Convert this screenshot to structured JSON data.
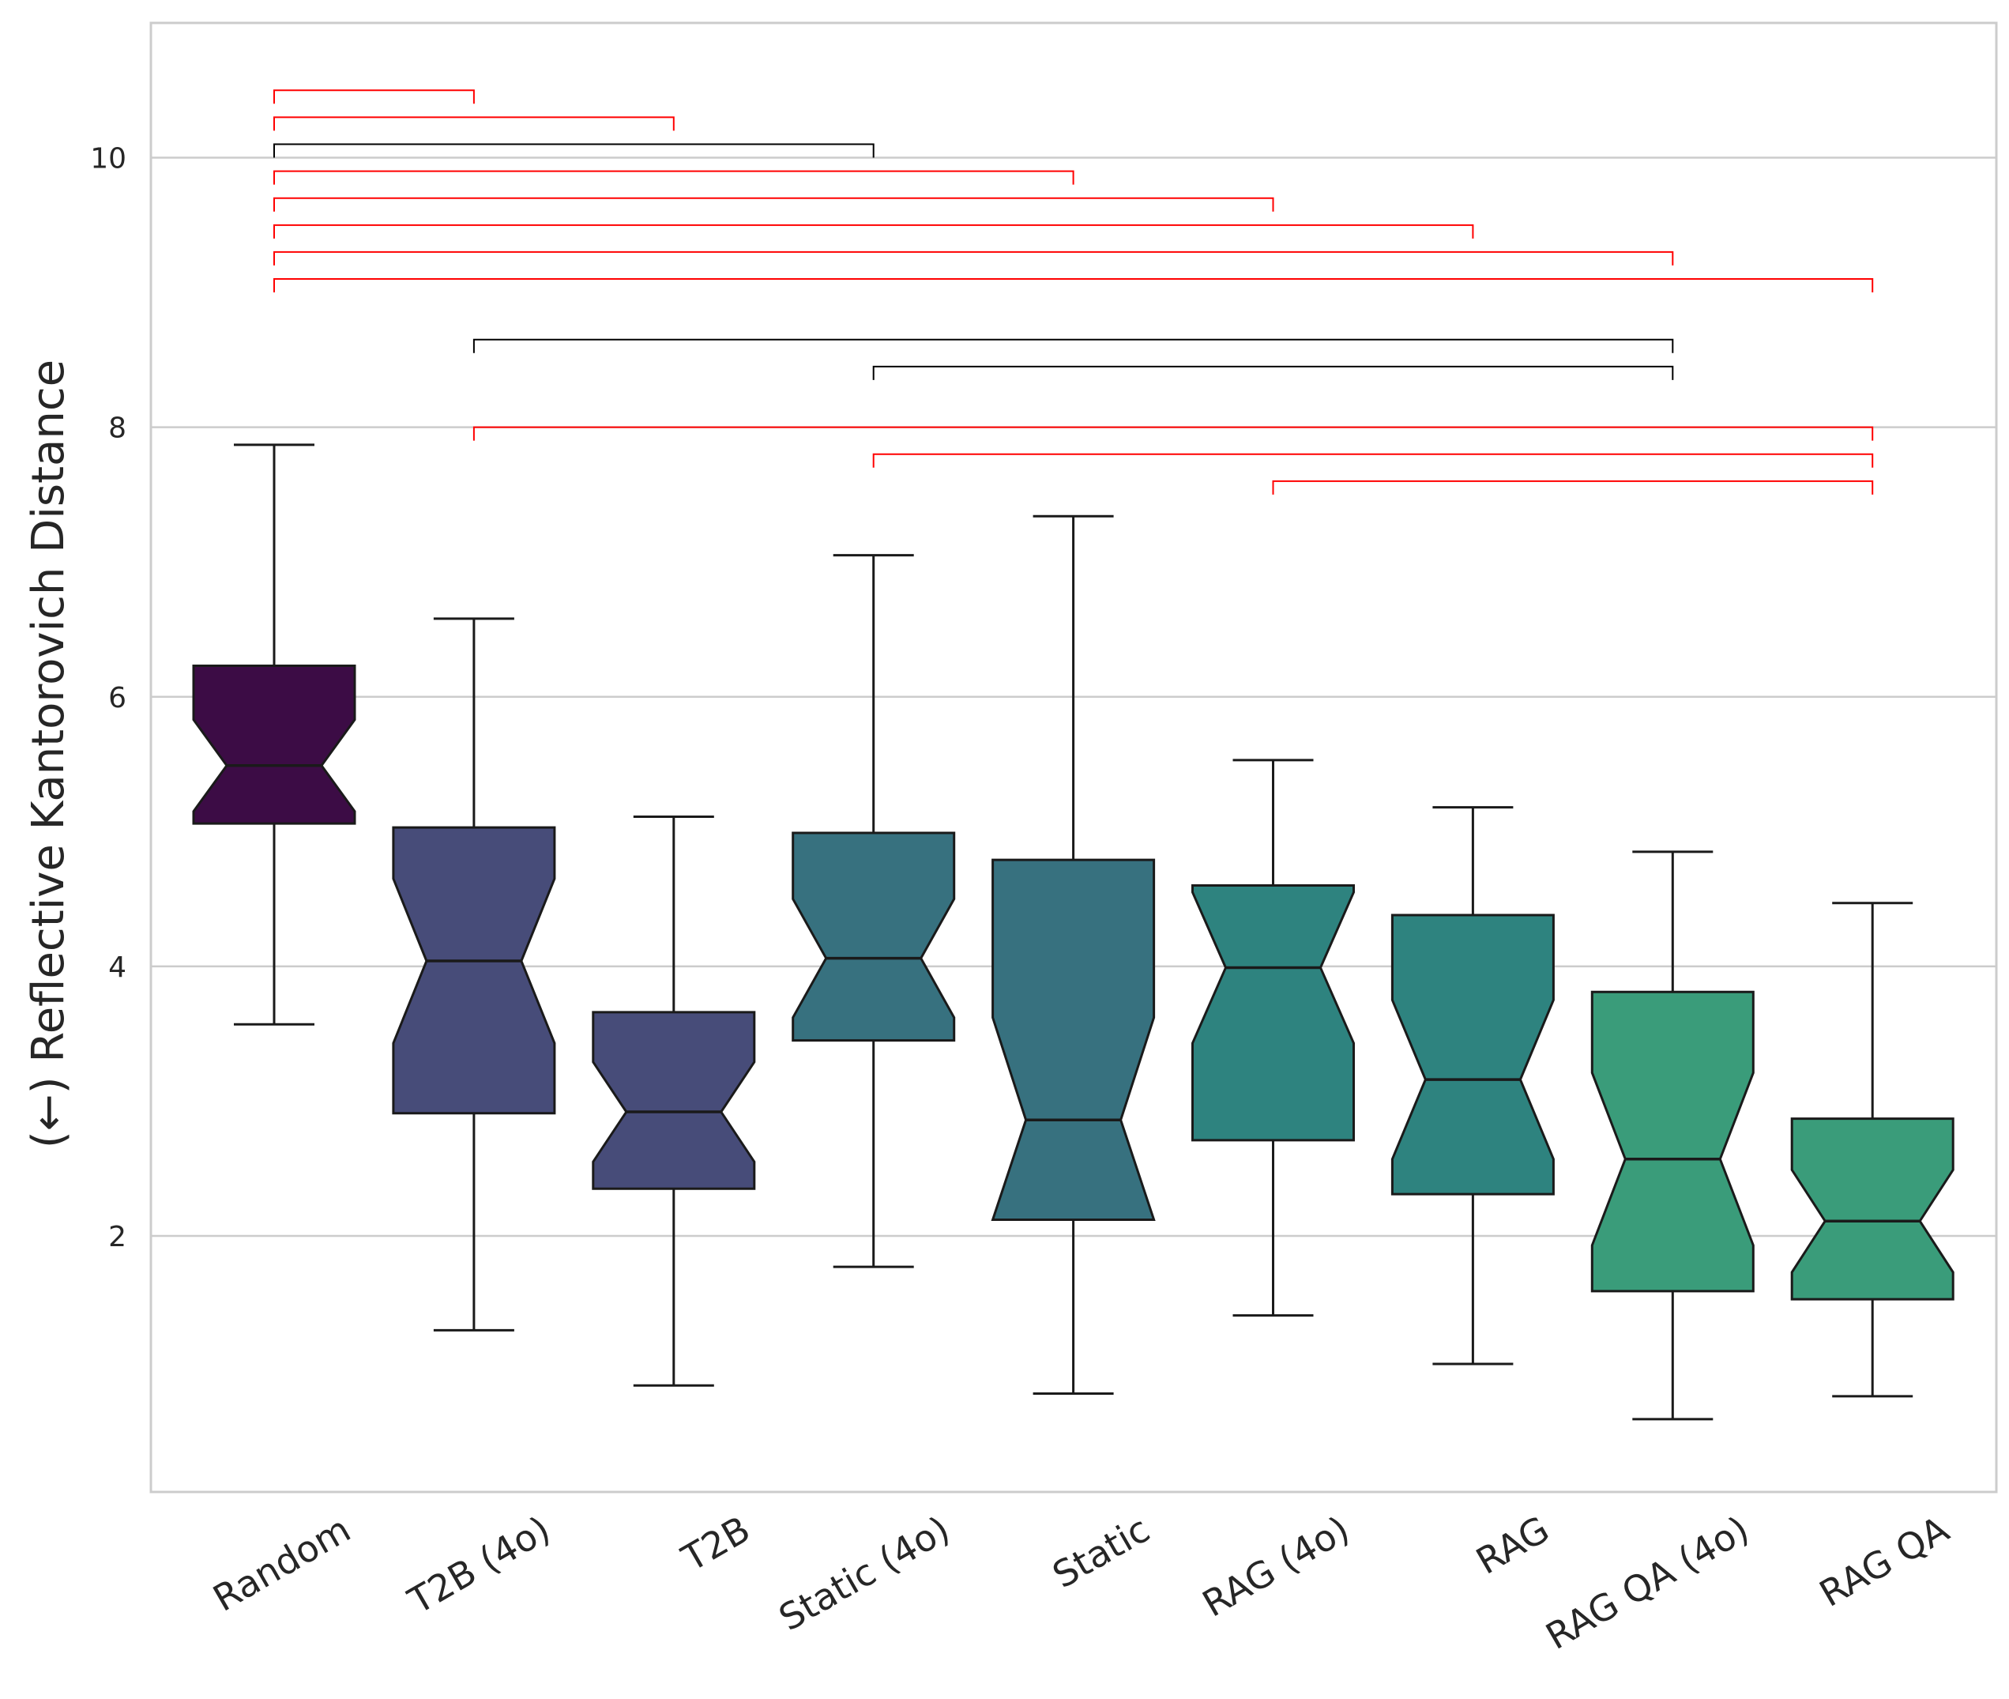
{
  "chart_data": {
    "type": "box",
    "title": "",
    "xlabel": "",
    "ylabel": "(←) Reflective Kantorovich Distance",
    "ylim": [
      0.1,
      11.0
    ],
    "yticks": [
      2,
      4,
      6,
      8,
      10
    ],
    "grid": "horizontal",
    "notched": true,
    "categories": [
      "Random",
      "T2B (4o)",
      "T2B",
      "Static (4o)",
      "Static",
      "RAG (4o)",
      "RAG",
      "RAG QA (4o)",
      "RAG QA"
    ],
    "boxes": [
      {
        "name": "Random",
        "whisker_low": 3.57,
        "q1": 5.06,
        "notch_low": 5.15,
        "median": 5.49,
        "notch_high": 5.83,
        "q3": 6.23,
        "whisker_high": 7.87,
        "color": "#3c0c45"
      },
      {
        "name": "T2B (4o)",
        "whisker_low": 1.3,
        "q1": 2.91,
        "notch_low": 3.43,
        "median": 4.04,
        "notch_high": 4.65,
        "q3": 5.03,
        "whisker_high": 6.58,
        "color": "#474c79"
      },
      {
        "name": "T2B",
        "whisker_low": 0.89,
        "q1": 2.35,
        "notch_low": 2.55,
        "median": 2.92,
        "notch_high": 3.29,
        "q3": 3.66,
        "whisker_high": 5.11,
        "color": "#474c79"
      },
      {
        "name": "Static (4o)",
        "whisker_low": 1.77,
        "q1": 3.45,
        "notch_low": 3.62,
        "median": 4.06,
        "notch_high": 4.5,
        "q3": 4.99,
        "whisker_high": 7.05,
        "color": "#37717f"
      },
      {
        "name": "Static",
        "whisker_low": 0.83,
        "q1": 2.12,
        "notch_low": 2.12,
        "median": 2.86,
        "notch_high": 3.62,
        "q3": 4.79,
        "whisker_high": 7.34,
        "color": "#37717f"
      },
      {
        "name": "RAG (4o)",
        "whisker_low": 1.41,
        "q1": 2.71,
        "notch_low": 3.43,
        "median": 3.99,
        "notch_high": 4.55,
        "q3": 4.6,
        "whisker_high": 5.53,
        "color": "#2e837f"
      },
      {
        "name": "RAG",
        "whisker_low": 1.05,
        "q1": 2.31,
        "notch_low": 2.57,
        "median": 3.16,
        "notch_high": 3.75,
        "q3": 4.38,
        "whisker_high": 5.18,
        "color": "#2e837f"
      },
      {
        "name": "RAG QA (4o)",
        "whisker_low": 0.64,
        "q1": 1.59,
        "notch_low": 1.93,
        "median": 2.57,
        "notch_high": 3.21,
        "q3": 3.81,
        "whisker_high": 4.85,
        "color": "#3a9c7a"
      },
      {
        "name": "RAG QA",
        "whisker_low": 0.81,
        "q1": 1.53,
        "notch_low": 1.73,
        "median": 2.11,
        "notch_high": 2.49,
        "q3": 2.87,
        "whisker_high": 4.47,
        "color": "#3a9c7a"
      }
    ],
    "significance_brackets": [
      {
        "from": "Random",
        "to": "T2B (4o)",
        "y": 10.5,
        "color": "#ff0000"
      },
      {
        "from": "Random",
        "to": "T2B",
        "y": 10.3,
        "color": "#ff0000"
      },
      {
        "from": "Random",
        "to": "Static (4o)",
        "y": 10.1,
        "color": "#000000"
      },
      {
        "from": "Random",
        "to": "Static",
        "y": 9.9,
        "color": "#ff0000"
      },
      {
        "from": "Random",
        "to": "RAG (4o)",
        "y": 9.7,
        "color": "#ff0000"
      },
      {
        "from": "Random",
        "to": "RAG",
        "y": 9.5,
        "color": "#ff0000"
      },
      {
        "from": "Random",
        "to": "RAG QA (4o)",
        "y": 9.3,
        "color": "#ff0000"
      },
      {
        "from": "Random",
        "to": "RAG QA",
        "y": 9.1,
        "color": "#ff0000"
      },
      {
        "from": "T2B (4o)",
        "to": "RAG QA (4o)",
        "y": 8.65,
        "color": "#000000"
      },
      {
        "from": "Static (4o)",
        "to": "RAG QA (4o)",
        "y": 8.45,
        "color": "#000000"
      },
      {
        "from": "T2B (4o)",
        "to": "RAG QA",
        "y": 8.0,
        "color": "#ff0000"
      },
      {
        "from": "Static (4o)",
        "to": "RAG QA",
        "y": 7.8,
        "color": "#ff0000"
      },
      {
        "from": "RAG (4o)",
        "to": "RAG QA",
        "y": 7.6,
        "color": "#ff0000"
      }
    ]
  }
}
